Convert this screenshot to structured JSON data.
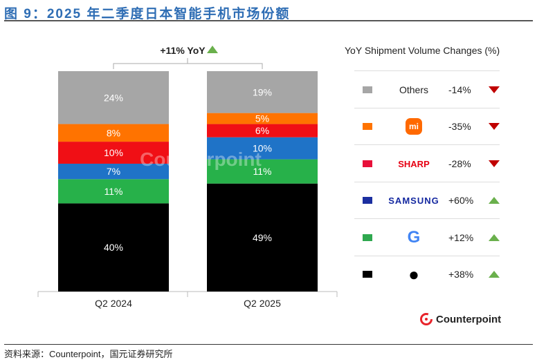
{
  "title": "图 9：2025 年二季度日本智能手机市场份额",
  "source": "资料来源：Counterpoint，国元证券研究所",
  "logo": "Counterpoint",
  "watermark": "Counterpoint",
  "chart_data": {
    "type": "bar",
    "stacked": true,
    "categories": [
      "Q2 2024",
      "Q2 2025"
    ],
    "annotation": "+11% YoY",
    "series": [
      {
        "name": "Apple",
        "color": "#000000",
        "values": [
          40,
          49
        ]
      },
      {
        "name": "Google",
        "color": "#27b14a",
        "values": [
          11,
          11
        ]
      },
      {
        "name": "Samsung",
        "color": "#1f73c7",
        "values": [
          7,
          10
        ]
      },
      {
        "name": "Sharp",
        "color": "#f00f15",
        "values": [
          10,
          6
        ]
      },
      {
        "name": "Xiaomi",
        "color": "#ff7300",
        "values": [
          8,
          5
        ]
      },
      {
        "name": "Others",
        "color": "#a6a6a6",
        "values": [
          24,
          19
        ]
      }
    ],
    "ylim": [
      0,
      100
    ]
  },
  "legend": {
    "title": "YoY Shipment Volume Changes (%)",
    "items": [
      {
        "brand": "Others",
        "change": "-14%",
        "dir": "down",
        "swatch": "#a6a6a6"
      },
      {
        "brand": "mi",
        "change": "-35%",
        "dir": "down",
        "swatch": "#ff7300"
      },
      {
        "brand": "SHARP",
        "change": "-28%",
        "dir": "down",
        "swatch": "#e8103a"
      },
      {
        "brand": "SAMSUNG",
        "change": "+60%",
        "dir": "up",
        "swatch": "#1b2fa0"
      },
      {
        "brand": "G",
        "change": "+12%",
        "dir": "up",
        "swatch": "#2fa84f"
      },
      {
        "brand": "Apple",
        "change": "+38%",
        "dir": "up",
        "swatch": "#000000"
      }
    ]
  }
}
